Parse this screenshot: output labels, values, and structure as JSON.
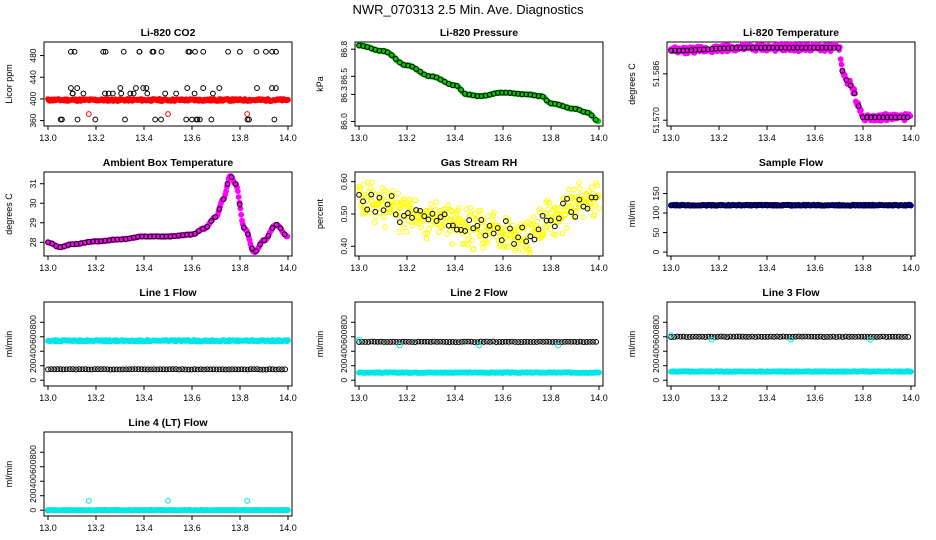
{
  "title": "NWR_070313  2.5 Min. Ave. Diagnostics",
  "chart_data": [
    {
      "id": "li820-co2",
      "type": "scatter",
      "title": "Li-820 CO2",
      "ylabel": "Licor ppm",
      "xlim": [
        13.0,
        14.0
      ],
      "ylim": [
        350,
        505
      ],
      "xticks": [
        "13.0",
        "13.2",
        "13.4",
        "13.6",
        "13.8",
        "14.0"
      ],
      "yticks": [
        {
          "v": 360,
          "label": "360"
        },
        {
          "v": 400,
          "label": "400"
        },
        {
          "v": 440,
          "label": "440"
        },
        {
          "v": 480,
          "label": "480"
        }
      ],
      "series": [
        {
          "name": "band-red",
          "color": "#ff0000",
          "kind": "band",
          "y": 398,
          "amp": 2,
          "filled": true
        },
        {
          "name": "co2-high",
          "color": "#000000",
          "kind": "sparse",
          "levels": [
            487
          ],
          "count": 20,
          "seed": 3
        },
        {
          "name": "co2-mid",
          "color": "#000000",
          "kind": "sparse",
          "levels": [
            410,
            420
          ],
          "count": 26,
          "seed": 5
        },
        {
          "name": "co2-low",
          "color": "#000000",
          "kind": "sparse",
          "levels": [
            362
          ],
          "count": 16,
          "seed": 7
        },
        {
          "name": "co2-red-out",
          "color": "#ff0000",
          "kind": "points",
          "x": [
            13.17,
            13.5,
            13.83
          ],
          "y": [
            372,
            372,
            372
          ]
        }
      ]
    },
    {
      "id": "li820-pressure",
      "type": "scatter",
      "title": "Li-820 Pressure",
      "ylabel": "kPa",
      "xlim": [
        13.0,
        14.0
      ],
      "ylim": [
        85.95,
        86.88
      ],
      "xticks": [
        "13.0",
        "13.2",
        "13.4",
        "13.6",
        "13.8",
        "14.0"
      ],
      "yticks": [
        {
          "v": 86.0,
          "label": "86.0"
        },
        {
          "v": 86.3,
          "label": "86.3"
        },
        {
          "v": 86.5,
          "label": "86.5"
        },
        {
          "v": 86.8,
          "label": "86.8"
        }
      ],
      "series": [
        {
          "name": "pressure",
          "color": "#00cc00",
          "kind": "curve",
          "filled": true,
          "overlay": "#000000",
          "x": [
            13.0,
            13.1,
            13.2,
            13.3,
            13.4,
            13.45,
            13.5,
            13.6,
            13.7,
            13.76,
            13.8,
            13.9,
            13.95,
            14.0
          ],
          "y": [
            86.84,
            86.78,
            86.62,
            86.5,
            86.4,
            86.3,
            86.28,
            86.32,
            86.3,
            86.28,
            86.2,
            86.14,
            86.1,
            86.0
          ]
        }
      ]
    },
    {
      "id": "li820-temperature",
      "type": "scatter",
      "title": "Li-820 Temperature",
      "ylabel": "degrees C",
      "xlim": [
        13.0,
        14.0
      ],
      "ylim": [
        51.568,
        51.597
      ],
      "xticks": [
        "13.0",
        "13.2",
        "13.4",
        "13.6",
        "13.8",
        "14.0"
      ],
      "yticks": [
        {
          "v": 51.57,
          "label": "51.570"
        },
        {
          "v": 51.586,
          "label": "51.586"
        }
      ],
      "series": [
        {
          "name": "temperature",
          "color": "#ff00ff",
          "kind": "curve",
          "filled": true,
          "overlay": "#000000",
          "noise": 0.0012,
          "x": [
            13.0,
            13.3,
            13.6,
            13.7,
            13.72,
            13.74,
            13.76,
            13.78,
            13.8,
            13.9,
            14.0
          ],
          "y": [
            51.594,
            51.595,
            51.595,
            51.595,
            51.585,
            51.583,
            51.58,
            51.575,
            51.571,
            51.571,
            51.571
          ]
        }
      ]
    },
    {
      "id": "ambient-box-temperature",
      "type": "scatter",
      "title": "Ambient Box Temperature",
      "ylabel": "degrees C",
      "xlim": [
        13.0,
        14.0
      ],
      "ylim": [
        27.3,
        31.6
      ],
      "xticks": [
        "13.0",
        "13.2",
        "13.4",
        "13.6",
        "13.8",
        "14.0"
      ],
      "yticks": [
        {
          "v": 28,
          "label": "28"
        },
        {
          "v": 29,
          "label": "29"
        },
        {
          "v": 30,
          "label": "30"
        },
        {
          "v": 31,
          "label": "31"
        }
      ],
      "series": [
        {
          "name": "box-temp",
          "color": "#ff00ff",
          "kind": "curve",
          "filled": true,
          "overlay": "#000000",
          "x": [
            13.0,
            13.05,
            13.1,
            13.2,
            13.3,
            13.4,
            13.5,
            13.6,
            13.65,
            13.7,
            13.73,
            13.76,
            13.78,
            13.82,
            13.86,
            13.9,
            13.95,
            14.0
          ],
          "y": [
            28.0,
            27.75,
            27.9,
            28.05,
            28.15,
            28.3,
            28.3,
            28.4,
            28.7,
            29.3,
            30.2,
            31.4,
            31.0,
            28.7,
            27.5,
            28.1,
            28.9,
            28.3
          ]
        }
      ]
    },
    {
      "id": "gas-stream-rh",
      "type": "scatter",
      "title": "Gas Stream RH",
      "ylabel": "percent",
      "xlim": [
        13.0,
        14.0
      ],
      "ylim": [
        0.37,
        0.63
      ],
      "xticks": [
        "13.0",
        "13.2",
        "13.4",
        "13.6",
        "13.8",
        "14.0"
      ],
      "yticks": [
        {
          "v": 0.4,
          "label": "0.40"
        },
        {
          "v": 0.5,
          "label": "0.50"
        },
        {
          "v": 0.6,
          "label": "0.60"
        }
      ],
      "series": [
        {
          "name": "rh",
          "color": "#ffff00",
          "kind": "cloud",
          "overlay": "#000000",
          "x": [
            13.0,
            13.1,
            13.2,
            13.3,
            13.4,
            13.5,
            13.6,
            13.7,
            13.8,
            13.9,
            14.0
          ],
          "y": [
            0.55,
            0.52,
            0.5,
            0.49,
            0.47,
            0.45,
            0.45,
            0.44,
            0.48,
            0.53,
            0.54
          ],
          "spread": 0.035
        }
      ]
    },
    {
      "id": "sample-flow",
      "type": "scatter",
      "title": "Sample Flow",
      "ylabel": "ml/min",
      "xlim": [
        13.0,
        14.0
      ],
      "ylim": [
        -10,
        205
      ],
      "xticks": [
        "13.0",
        "13.2",
        "13.4",
        "13.6",
        "13.8",
        "14.0"
      ],
      "yticks": [
        {
          "v": 0,
          "label": "0"
        },
        {
          "v": 50,
          "label": "50"
        },
        {
          "v": 100,
          "label": "100"
        },
        {
          "v": 150,
          "label": "150"
        }
      ],
      "series": [
        {
          "name": "sample-flow",
          "color": "#0000aa",
          "kind": "band",
          "y": 120,
          "amp": 1.5,
          "filled": true,
          "overlay": "#000000"
        }
      ]
    },
    {
      "id": "line-1-flow",
      "type": "scatter",
      "title": "Line 1 Flow",
      "ylabel": "ml/min",
      "xlim": [
        13.0,
        14.0
      ],
      "ylim": [
        -80,
        1080
      ],
      "xticks": [
        "13.0",
        "13.2",
        "13.4",
        "13.6",
        "13.8",
        "14.0"
      ],
      "yticks": [
        {
          "v": 0,
          "label": "0"
        },
        {
          "v": 200,
          "label": "200"
        },
        {
          "v": 400,
          "label": "400"
        },
        {
          "v": 600,
          "label": "600"
        },
        {
          "v": 800,
          "label": "800"
        }
      ],
      "series": [
        {
          "name": "line1-cyan",
          "color": "#00e5e5",
          "kind": "band",
          "y": 545,
          "amp": 10,
          "filled": true
        },
        {
          "name": "line1-black",
          "color": "#000000",
          "kind": "band",
          "y": 150,
          "amp": 3,
          "filled": false,
          "step": 0.013
        }
      ]
    },
    {
      "id": "line-2-flow",
      "type": "scatter",
      "title": "Line 2 Flow",
      "ylabel": "ml/min",
      "xlim": [
        13.0,
        14.0
      ],
      "ylim": [
        -80,
        1080
      ],
      "xticks": [
        "13.0",
        "13.2",
        "13.4",
        "13.6",
        "13.8",
        "14.0"
      ],
      "yticks": [
        {
          "v": 0,
          "label": "0"
        },
        {
          "v": 200,
          "label": "200"
        },
        {
          "v": 400,
          "label": "400"
        },
        {
          "v": 600,
          "label": "600"
        },
        {
          "v": 800,
          "label": "800"
        }
      ],
      "series": [
        {
          "name": "line2-cyan-low",
          "color": "#00e5e5",
          "kind": "band",
          "y": 105,
          "amp": 5,
          "filled": true
        },
        {
          "name": "line2-black",
          "color": "#000000",
          "kind": "band",
          "y": 530,
          "amp": 4,
          "filled": false,
          "step": 0.013
        },
        {
          "name": "line2-cyan-out",
          "color": "#00e5e5",
          "kind": "points",
          "x": [
            13.0,
            13.17,
            13.5,
            13.83
          ],
          "y": [
            560,
            480,
            480,
            480
          ]
        }
      ]
    },
    {
      "id": "line-3-flow",
      "type": "scatter",
      "title": "Line 3 Flow",
      "ylabel": "ml/min",
      "xlim": [
        13.0,
        14.0
      ],
      "ylim": [
        -80,
        1080
      ],
      "xticks": [
        "13.0",
        "13.2",
        "13.4",
        "13.6",
        "13.8",
        "14.0"
      ],
      "yticks": [
        {
          "v": 0,
          "label": "0"
        },
        {
          "v": 200,
          "label": "200"
        },
        {
          "v": 400,
          "label": "400"
        },
        {
          "v": 600,
          "label": "600"
        },
        {
          "v": 800,
          "label": "800"
        }
      ],
      "series": [
        {
          "name": "line3-cyan-low",
          "color": "#00e5e5",
          "kind": "band",
          "y": 120,
          "amp": 5,
          "filled": true
        },
        {
          "name": "line3-black",
          "color": "#000000",
          "kind": "band",
          "y": 600,
          "amp": 4,
          "filled": false,
          "step": 0.013
        },
        {
          "name": "line3-cyan-out",
          "color": "#00e5e5",
          "kind": "points",
          "x": [
            13.0,
            13.17,
            13.5,
            13.83
          ],
          "y": [
            620,
            560,
            560,
            560
          ]
        }
      ]
    },
    {
      "id": "line-4-lt-flow",
      "type": "scatter",
      "title": "Line 4 (LT) Flow",
      "ylabel": "ml/min",
      "xlim": [
        13.0,
        14.0
      ],
      "ylim": [
        -80,
        1080
      ],
      "xticks": [
        "13.0",
        "13.2",
        "13.4",
        "13.6",
        "13.8",
        "14.0"
      ],
      "yticks": [
        {
          "v": 0,
          "label": "0"
        },
        {
          "v": 200,
          "label": "200"
        },
        {
          "v": 400,
          "label": "400"
        },
        {
          "v": 600,
          "label": "600"
        },
        {
          "v": 800,
          "label": "800"
        }
      ],
      "series": [
        {
          "name": "line4-black",
          "color": "#000000",
          "kind": "band",
          "y": 0,
          "amp": 2,
          "filled": false,
          "step": 0.013
        },
        {
          "name": "line4-cyan",
          "color": "#00e5e5",
          "kind": "band",
          "y": 0,
          "amp": 2,
          "filled": true
        },
        {
          "name": "line4-cyan-out",
          "color": "#00e5e5",
          "kind": "points",
          "x": [
            13.17,
            13.5,
            13.83
          ],
          "y": [
            130,
            130,
            130
          ]
        }
      ]
    }
  ]
}
